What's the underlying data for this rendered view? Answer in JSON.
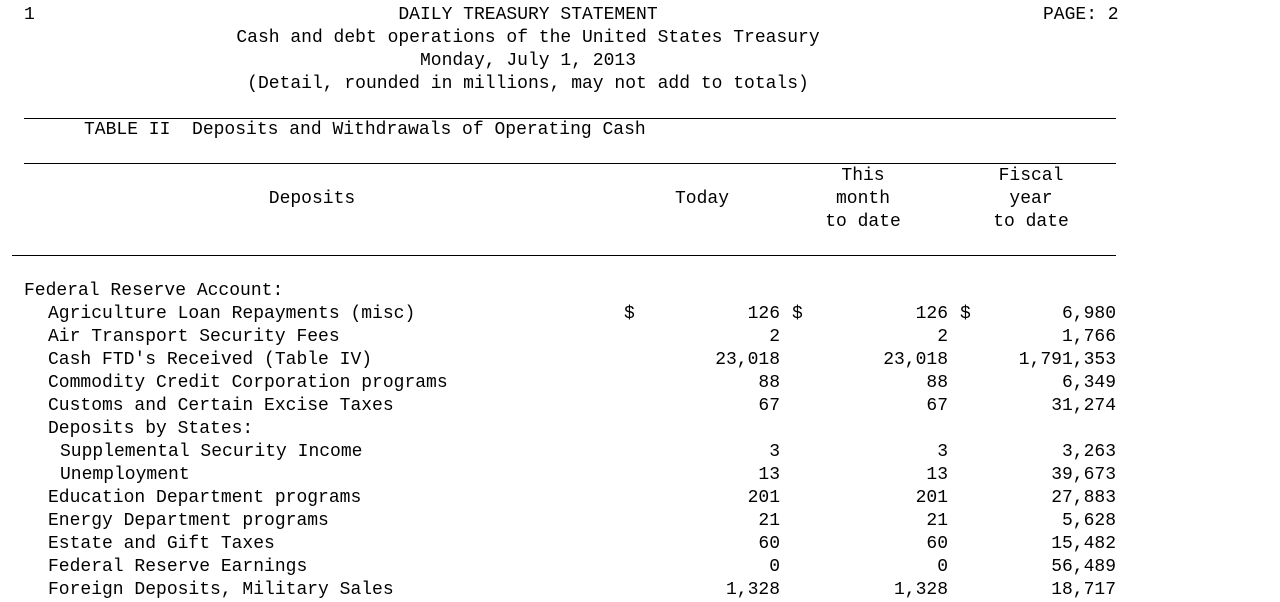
{
  "header": {
    "page_marker": "1",
    "title": "DAILY TREASURY STATEMENT",
    "page_label": "PAGE: 2",
    "subtitle": "Cash and debt operations of the United States Treasury",
    "date": "Monday, July 1, 2013",
    "note": "(Detail, rounded in millions, may not add to totals)"
  },
  "table": {
    "title": "TABLE II  Deposits and Withdrawals of Operating Cash",
    "columns": {
      "label": "Deposits",
      "today": "Today",
      "month": [
        "This",
        "month",
        "to date"
      ],
      "fiscal": [
        "Fiscal",
        "year",
        "to date"
      ]
    },
    "section_heading": "Federal Reserve Account:",
    "currency_symbol": "$",
    "rows": [
      {
        "label": "Agriculture Loan Repayments (misc)",
        "indent": 1,
        "today": "126",
        "month": "126",
        "fiscal": "6,980",
        "dollar": true
      },
      {
        "label": "Air Transport Security Fees",
        "indent": 1,
        "today": "2",
        "month": "2",
        "fiscal": "1,766"
      },
      {
        "label": "Cash FTD's Received (Table IV)",
        "indent": 1,
        "today": "23,018",
        "month": "23,018",
        "fiscal": "1,791,353"
      },
      {
        "label": "Commodity Credit Corporation programs",
        "indent": 1,
        "today": "88",
        "month": "88",
        "fiscal": "6,349"
      },
      {
        "label": "Customs and Certain Excise Taxes",
        "indent": 1,
        "today": "67",
        "month": "67",
        "fiscal": "31,274"
      },
      {
        "label": "Deposits by States:",
        "indent": 1,
        "today": "",
        "month": "",
        "fiscal": ""
      },
      {
        "label": "Supplemental Security Income",
        "indent": 2,
        "today": "3",
        "month": "3",
        "fiscal": "3,263"
      },
      {
        "label": "Unemployment",
        "indent": 2,
        "today": "13",
        "month": "13",
        "fiscal": "39,673"
      },
      {
        "label": "Education Department programs",
        "indent": 1,
        "today": "201",
        "month": "201",
        "fiscal": "27,883"
      },
      {
        "label": "Energy Department programs",
        "indent": 1,
        "today": "21",
        "month": "21",
        "fiscal": "5,628"
      },
      {
        "label": "Estate and Gift Taxes",
        "indent": 1,
        "today": "60",
        "month": "60",
        "fiscal": "15,482"
      },
      {
        "label": "Federal Reserve Earnings",
        "indent": 1,
        "today": "0",
        "month": "0",
        "fiscal": "56,489"
      },
      {
        "label": "Foreign Deposits, Military Sales",
        "indent": 1,
        "today": "1,328",
        "month": "1,328",
        "fiscal": "18,717"
      }
    ]
  }
}
